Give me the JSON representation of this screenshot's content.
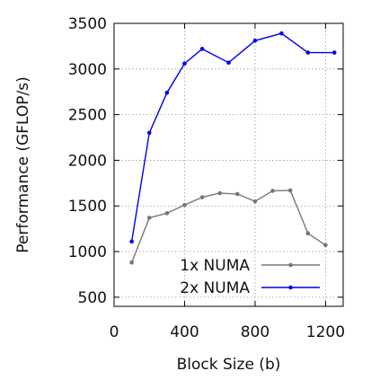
{
  "chart_data": {
    "type": "line",
    "xlabel": "Block Size (b)",
    "ylabel": "Performance (GFLOP/s)",
    "xlim": [
      0,
      1300
    ],
    "ylim": [
      400,
      3500
    ],
    "xticks": [
      0,
      400,
      800,
      1200
    ],
    "yticks": [
      500,
      1000,
      1500,
      2000,
      2500,
      3000,
      3500
    ],
    "grid": true,
    "legend_position": "bottom-right",
    "series": [
      {
        "name": "1x NUMA",
        "color": "#777777",
        "x": [
          100,
          200,
          300,
          400,
          500,
          600,
          700,
          800,
          900,
          1000,
          1100,
          1200
        ],
        "y": [
          880,
          1370,
          1420,
          1510,
          1595,
          1640,
          1630,
          1550,
          1665,
          1670,
          1200,
          1070
        ]
      },
      {
        "name": "2x NUMA",
        "color": "#0000ee",
        "x": [
          100,
          200,
          300,
          400,
          500,
          650,
          800,
          950,
          1100,
          1250
        ],
        "y": [
          1110,
          2300,
          2740,
          3060,
          3220,
          3070,
          3310,
          3390,
          3180,
          3180
        ]
      }
    ]
  }
}
